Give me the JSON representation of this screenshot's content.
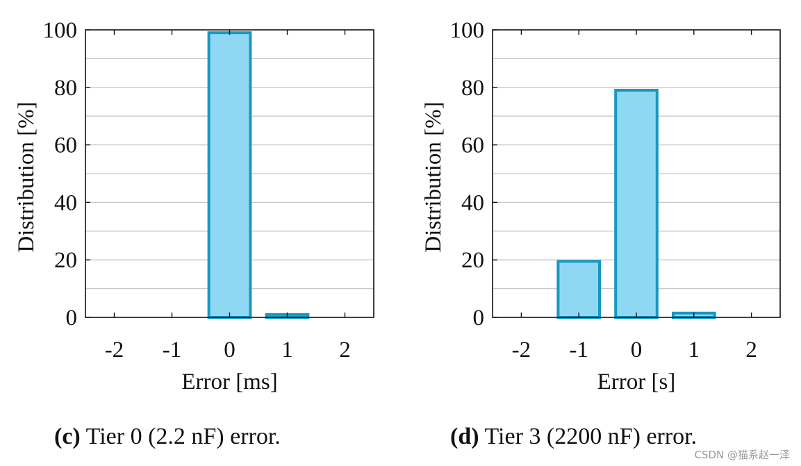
{
  "chart_data": [
    {
      "type": "bar",
      "categories": [
        "-2",
        "-1",
        "0",
        "1",
        "2"
      ],
      "values": [
        0,
        0,
        99,
        1,
        0
      ],
      "title": "",
      "xlabel": "Error [ms]",
      "ylabel": "Distribution [%]",
      "ylim": [
        0,
        100
      ],
      "yticks": [
        "0",
        "20",
        "40",
        "60",
        "80",
        "100"
      ],
      "grid": true,
      "bar_fill": "#8fd8f4",
      "bar_stroke": "#1898c0",
      "caption": {
        "label": "(c)",
        "text": "Tier 0 (2.2 nF) error."
      }
    },
    {
      "type": "bar",
      "categories": [
        "-2",
        "-1",
        "0",
        "1",
        "2"
      ],
      "values": [
        0,
        19.5,
        79,
        1.5,
        0
      ],
      "title": "",
      "xlabel": "Error [s]",
      "ylabel": "Distribution [%]",
      "ylim": [
        0,
        100
      ],
      "yticks": [
        "0",
        "20",
        "40",
        "60",
        "80",
        "100"
      ],
      "grid": true,
      "bar_fill": "#8fd8f4",
      "bar_stroke": "#1898c0",
      "caption": {
        "label": "(d)",
        "text": "Tier 3 (2200 nF) error."
      }
    }
  ],
  "watermark": "CSDN @猫系赵一泽"
}
